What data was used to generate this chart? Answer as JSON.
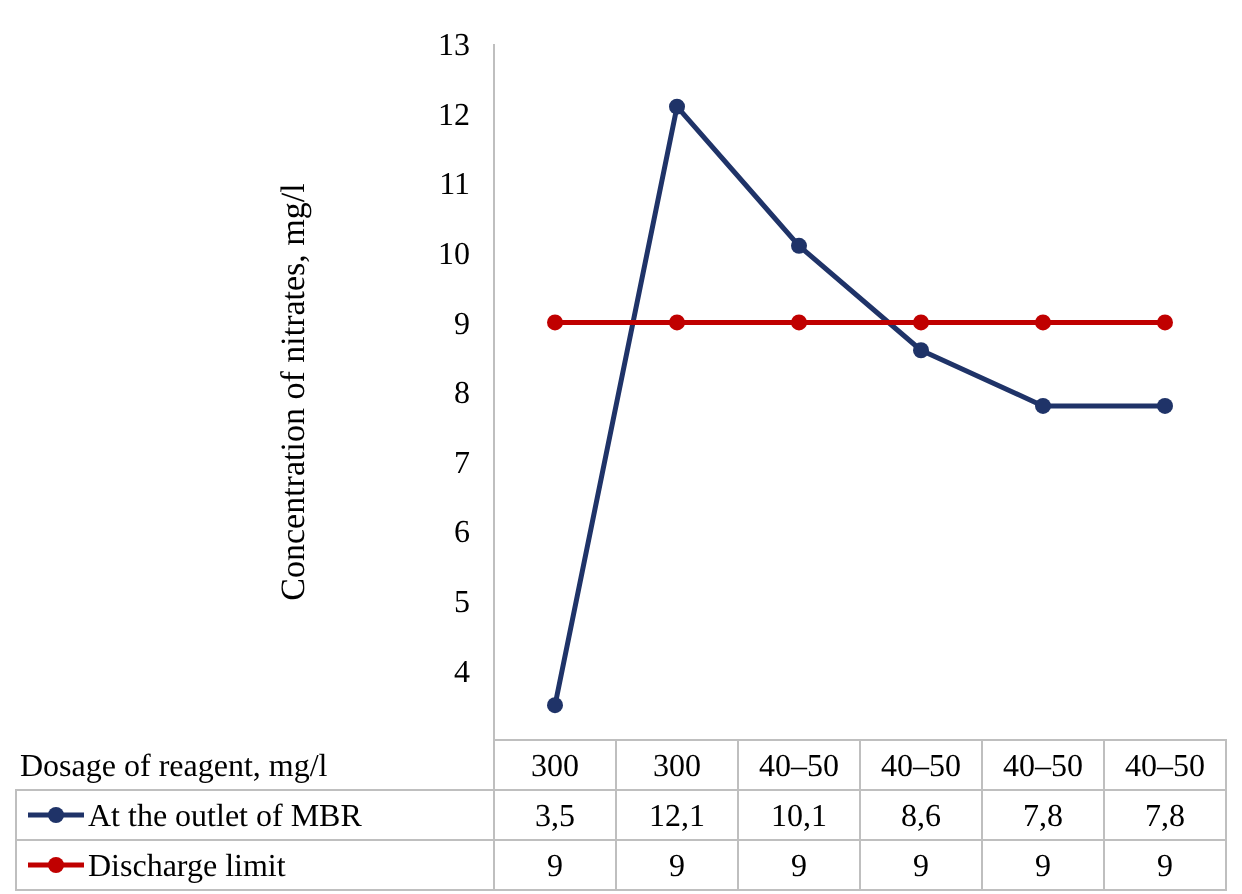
{
  "chart_data": {
    "type": "line",
    "xlabel": "Dosage of reagent, mg/l",
    "ylabel": "Concentration of nitrates, mg/l",
    "categories": [
      "300",
      "300",
      "40–50",
      "40–50",
      "40–50",
      "40–50"
    ],
    "series": [
      {
        "name": "At the outlet of MBR",
        "color": "#1f3368",
        "values": [
          3.5,
          12.1,
          10.1,
          8.6,
          7.8,
          7.8
        ],
        "value_labels": [
          "3,5",
          "12,1",
          "10,1",
          "8,6",
          "7,8",
          "7,8"
        ]
      },
      {
        "name": "Discharge limit",
        "color": "#c00000",
        "values": [
          9,
          9,
          9,
          9,
          9,
          9
        ],
        "value_labels": [
          "9",
          "9",
          "9",
          "9",
          "9",
          "9"
        ]
      }
    ],
    "ylim": [
      3,
      13
    ],
    "yticks": [
      4,
      5,
      6,
      7,
      8,
      9,
      10,
      11,
      12,
      13
    ],
    "grid": false,
    "marker": "circle",
    "line_style": "solid",
    "legend": "bottom",
    "data_labels": true
  }
}
